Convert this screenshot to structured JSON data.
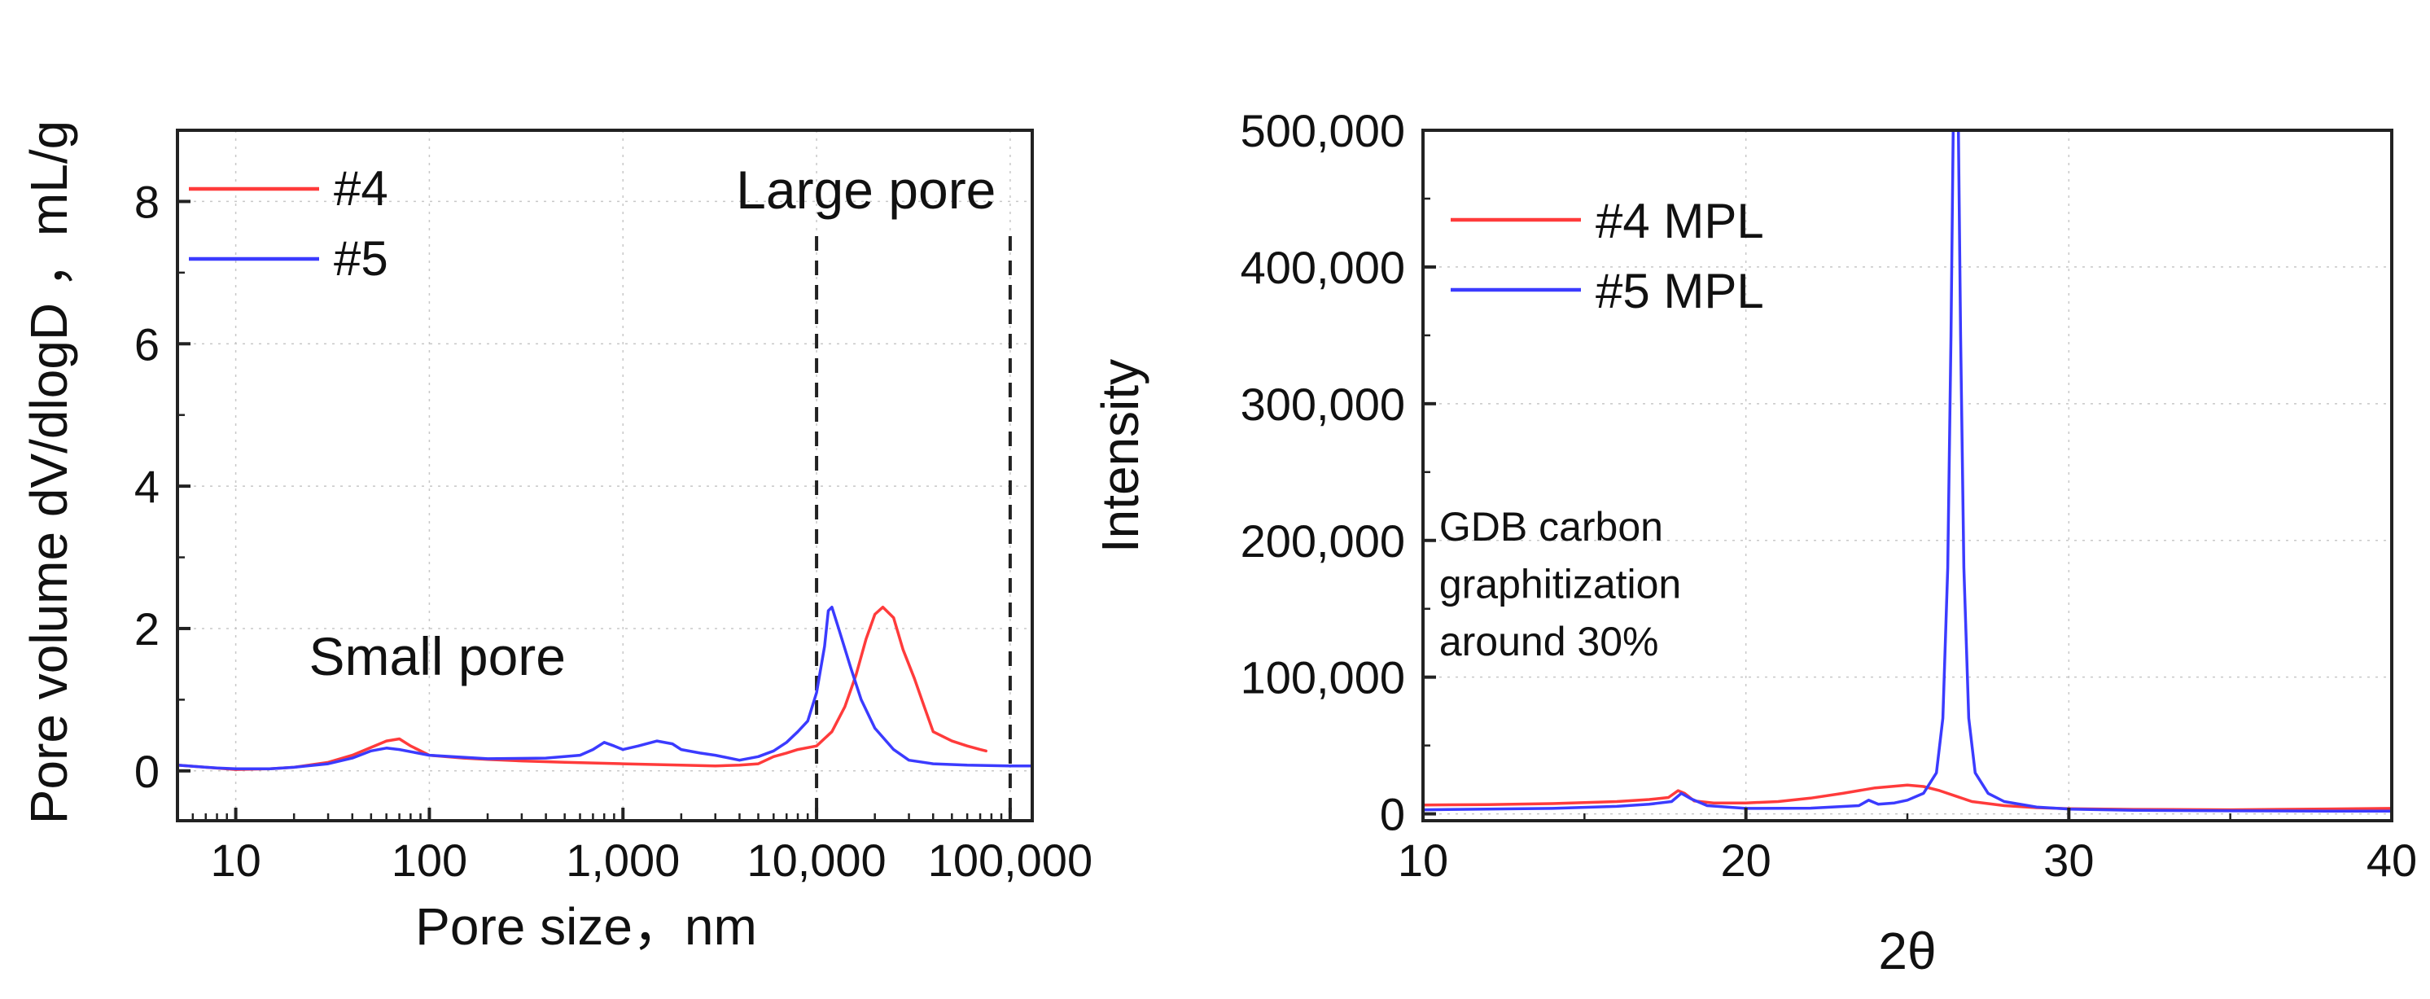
{
  "chart_data": [
    {
      "type": "line",
      "xscale": "log",
      "xlabel": "Pore size，nm",
      "ylabel": "Pore volume dV/dlogD ，mL/g",
      "xlim": [
        5,
        130000
      ],
      "ylim": [
        -0.7,
        9
      ],
      "xticks": [
        {
          "value": 10,
          "label": "10"
        },
        {
          "value": 100,
          "label": "100"
        },
        {
          "value": 1000,
          "label": "1,000"
        },
        {
          "value": 10000,
          "label": "10,000"
        },
        {
          "value": 100000,
          "label": "100,000"
        }
      ],
      "yticks": [
        {
          "value": 0,
          "label": "0"
        },
        {
          "value": 2,
          "label": "2"
        },
        {
          "value": 4,
          "label": "4"
        },
        {
          "value": 6,
          "label": "6"
        },
        {
          "value": 8,
          "label": "8"
        }
      ],
      "grid": true,
      "legend_position": "top-left",
      "series": [
        {
          "name": "#4",
          "color": "#ff3b3b",
          "points": [
            [
              5,
              0.08
            ],
            [
              7,
              0.05
            ],
            [
              10,
              0.02
            ],
            [
              15,
              0.03
            ],
            [
              20,
              0.05
            ],
            [
              30,
              0.12
            ],
            [
              40,
              0.22
            ],
            [
              50,
              0.33
            ],
            [
              60,
              0.42
            ],
            [
              70,
              0.45
            ],
            [
              80,
              0.35
            ],
            [
              100,
              0.22
            ],
            [
              150,
              0.18
            ],
            [
              200,
              0.16
            ],
            [
              300,
              0.14
            ],
            [
              500,
              0.12
            ],
            [
              1000,
              0.1
            ],
            [
              2000,
              0.08
            ],
            [
              3000,
              0.07
            ],
            [
              4000,
              0.08
            ],
            [
              5000,
              0.1
            ],
            [
              6000,
              0.2
            ],
            [
              7000,
              0.25
            ],
            [
              8000,
              0.3
            ],
            [
              10000,
              0.35
            ],
            [
              12000,
              0.55
            ],
            [
              14000,
              0.9
            ],
            [
              16000,
              1.35
            ],
            [
              18000,
              1.85
            ],
            [
              20000,
              2.2
            ],
            [
              22000,
              2.3
            ],
            [
              25000,
              2.15
            ],
            [
              28000,
              1.7
            ],
            [
              32000,
              1.3
            ],
            [
              36000,
              0.9
            ],
            [
              40000,
              0.55
            ],
            [
              50000,
              0.42
            ],
            [
              60000,
              0.35
            ],
            [
              70000,
              0.3
            ],
            [
              75000,
              0.28
            ]
          ]
        },
        {
          "name": "#5",
          "color": "#3b3bff",
          "points": [
            [
              5,
              0.08
            ],
            [
              8,
              0.04
            ],
            [
              10,
              0.03
            ],
            [
              15,
              0.03
            ],
            [
              20,
              0.05
            ],
            [
              30,
              0.1
            ],
            [
              40,
              0.18
            ],
            [
              50,
              0.28
            ],
            [
              60,
              0.32
            ],
            [
              70,
              0.3
            ],
            [
              100,
              0.22
            ],
            [
              200,
              0.17
            ],
            [
              400,
              0.18
            ],
            [
              600,
              0.22
            ],
            [
              700,
              0.3
            ],
            [
              800,
              0.4
            ],
            [
              900,
              0.35
            ],
            [
              1000,
              0.3
            ],
            [
              1200,
              0.35
            ],
            [
              1500,
              0.42
            ],
            [
              1800,
              0.38
            ],
            [
              2000,
              0.3
            ],
            [
              2500,
              0.25
            ],
            [
              3000,
              0.22
            ],
            [
              4000,
              0.15
            ],
            [
              5000,
              0.2
            ],
            [
              6000,
              0.28
            ],
            [
              7000,
              0.4
            ],
            [
              8000,
              0.55
            ],
            [
              9000,
              0.7
            ],
            [
              10000,
              1.1
            ],
            [
              11000,
              1.75
            ],
            [
              11500,
              2.25
            ],
            [
              12000,
              2.3
            ],
            [
              13000,
              2.0
            ],
            [
              15000,
              1.45
            ],
            [
              17000,
              1.0
            ],
            [
              20000,
              0.6
            ],
            [
              25000,
              0.3
            ],
            [
              30000,
              0.15
            ],
            [
              40000,
              0.1
            ],
            [
              60000,
              0.08
            ],
            [
              100000,
              0.07
            ],
            [
              130000,
              0.07
            ]
          ]
        }
      ],
      "vlines": [
        10000,
        100000
      ],
      "annotations": [
        {
          "text": "Large pore",
          "x": 18000,
          "y": 7.9
        },
        {
          "text": "Small pore",
          "x": 110,
          "y": 1.35
        }
      ]
    },
    {
      "type": "line",
      "xlabel": "2θ",
      "ylabel": "Intensity",
      "xlim": [
        10,
        40
      ],
      "ylim": [
        -5000,
        500000
      ],
      "xticks": [
        {
          "value": 10,
          "label": "10"
        },
        {
          "value": 20,
          "label": "20"
        },
        {
          "value": 30,
          "label": "30"
        },
        {
          "value": 40,
          "label": "40"
        }
      ],
      "yticks": [
        {
          "value": 0,
          "label": "0"
        },
        {
          "value": 100000,
          "label": "100,000"
        },
        {
          "value": 200000,
          "label": "200,000"
        },
        {
          "value": 300000,
          "label": "300,000"
        },
        {
          "value": 400000,
          "label": "400,000"
        },
        {
          "value": 500000,
          "label": "500,000"
        }
      ],
      "grid": true,
      "legend_position": "top-left",
      "series": [
        {
          "name": "#4 MPL",
          "color": "#ff3b3b",
          "points": [
            [
              10,
              6500
            ],
            [
              12,
              6800
            ],
            [
              14,
              7500
            ],
            [
              16,
              9000
            ],
            [
              17,
              10500
            ],
            [
              17.6,
              12000
            ],
            [
              17.9,
              17000
            ],
            [
              18.1,
              15000
            ],
            [
              18.4,
              9500
            ],
            [
              19,
              8000
            ],
            [
              20,
              8000
            ],
            [
              21,
              9000
            ],
            [
              22,
              11500
            ],
            [
              23,
              15000
            ],
            [
              24,
              19000
            ],
            [
              25,
              21000
            ],
            [
              25.5,
              20000
            ],
            [
              26,
              17000
            ],
            [
              26.5,
              13000
            ],
            [
              27,
              9000
            ],
            [
              28,
              6000
            ],
            [
              29,
              4500
            ],
            [
              30,
              3800
            ],
            [
              32,
              3300
            ],
            [
              35,
              3000
            ],
            [
              38,
              3600
            ],
            [
              40,
              4000
            ]
          ]
        },
        {
          "name": "#5 MPL",
          "color": "#3b3bff",
          "points": [
            [
              10,
              3000
            ],
            [
              12,
              3500
            ],
            [
              14,
              4000
            ],
            [
              16,
              5500
            ],
            [
              17,
              7000
            ],
            [
              17.7,
              9000
            ],
            [
              18,
              15000
            ],
            [
              18.3,
              11000
            ],
            [
              18.8,
              6000
            ],
            [
              20,
              4000
            ],
            [
              22,
              4200
            ],
            [
              23.5,
              6000
            ],
            [
              23.8,
              10000
            ],
            [
              24.1,
              7000
            ],
            [
              24.6,
              8000
            ],
            [
              25,
              10000
            ],
            [
              25.5,
              15000
            ],
            [
              25.9,
              30000
            ],
            [
              26.1,
              70000
            ],
            [
              26.25,
              180000
            ],
            [
              26.35,
              350000
            ],
            [
              26.42,
              500000
            ],
            [
              26.58,
              500000
            ],
            [
              26.65,
              350000
            ],
            [
              26.75,
              180000
            ],
            [
              26.9,
              70000
            ],
            [
              27.1,
              30000
            ],
            [
              27.5,
              15000
            ],
            [
              28,
              9000
            ],
            [
              29,
              5000
            ],
            [
              30,
              3500
            ],
            [
              32,
              2600
            ],
            [
              35,
              2200
            ],
            [
              38,
              2000
            ],
            [
              40,
              2000
            ]
          ]
        }
      ],
      "annotations": [
        {
          "text": "GDB carbon",
          "x": 10.5,
          "y": 200000
        },
        {
          "text": "graphitization",
          "x": 10.5,
          "y": 158000
        },
        {
          "text": "around 30%",
          "x": 10.5,
          "y": 116000
        }
      ]
    }
  ]
}
